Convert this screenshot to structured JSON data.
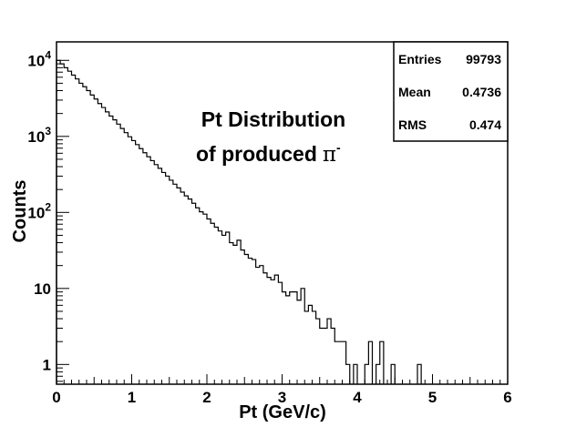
{
  "chart_data": {
    "type": "histogram",
    "title_lines": [
      "Pt Distribution",
      "of produced"
    ],
    "title_symbol": "π",
    "title_superscript": "-",
    "xlabel": "Pt (GeV/c)",
    "ylabel": "Counts",
    "xlim": [
      0,
      6
    ],
    "ylim": [
      0.55,
      17500
    ],
    "y_scale": "log",
    "x_ticks": [
      "0",
      "1",
      "2",
      "3",
      "4",
      "5",
      "6"
    ],
    "y_ticks": [
      {
        "value": 10000,
        "base": "10",
        "exp": "4"
      },
      {
        "value": 1000,
        "base": "10",
        "exp": "3"
      },
      {
        "value": 100,
        "base": "10",
        "exp": "2"
      },
      {
        "value": 10,
        "base": "10",
        "exp": ""
      },
      {
        "value": 1,
        "base": "1",
        "exp": ""
      }
    ],
    "bin_width": 0.05,
    "bin_start": 0,
    "values": [
      10000,
      9000,
      8000,
      7200,
      6400,
      5700,
      5000,
      4500,
      4000,
      3500,
      3100,
      2700,
      2400,
      2100,
      1850,
      1650,
      1450,
      1270,
      1120,
      990,
      880,
      780,
      690,
      610,
      540,
      480,
      425,
      380,
      335,
      300,
      265,
      235,
      210,
      185,
      165,
      150,
      132,
      115,
      102,
      95,
      82,
      72,
      64,
      57,
      50,
      55,
      40,
      37,
      43,
      32,
      28,
      25,
      24,
      19,
      20,
      16,
      14,
      13,
      15,
      12,
      9,
      8,
      9,
      9,
      7,
      10,
      5,
      6,
      5,
      4,
      3,
      3,
      4,
      3,
      2,
      2,
      2,
      1,
      0,
      1,
      0,
      0,
      1,
      2,
      0,
      1,
      2,
      0,
      0,
      1,
      0,
      0,
      0,
      0,
      0,
      0,
      1,
      0,
      0,
      0
    ],
    "stats": [
      {
        "label": "Entries",
        "value": "99793"
      },
      {
        "label": "Mean",
        "value": "0.4736"
      },
      {
        "label": "RMS",
        "value": "0.474"
      }
    ],
    "line_color": "#000000",
    "background": "#ffffff",
    "grid": false
  }
}
